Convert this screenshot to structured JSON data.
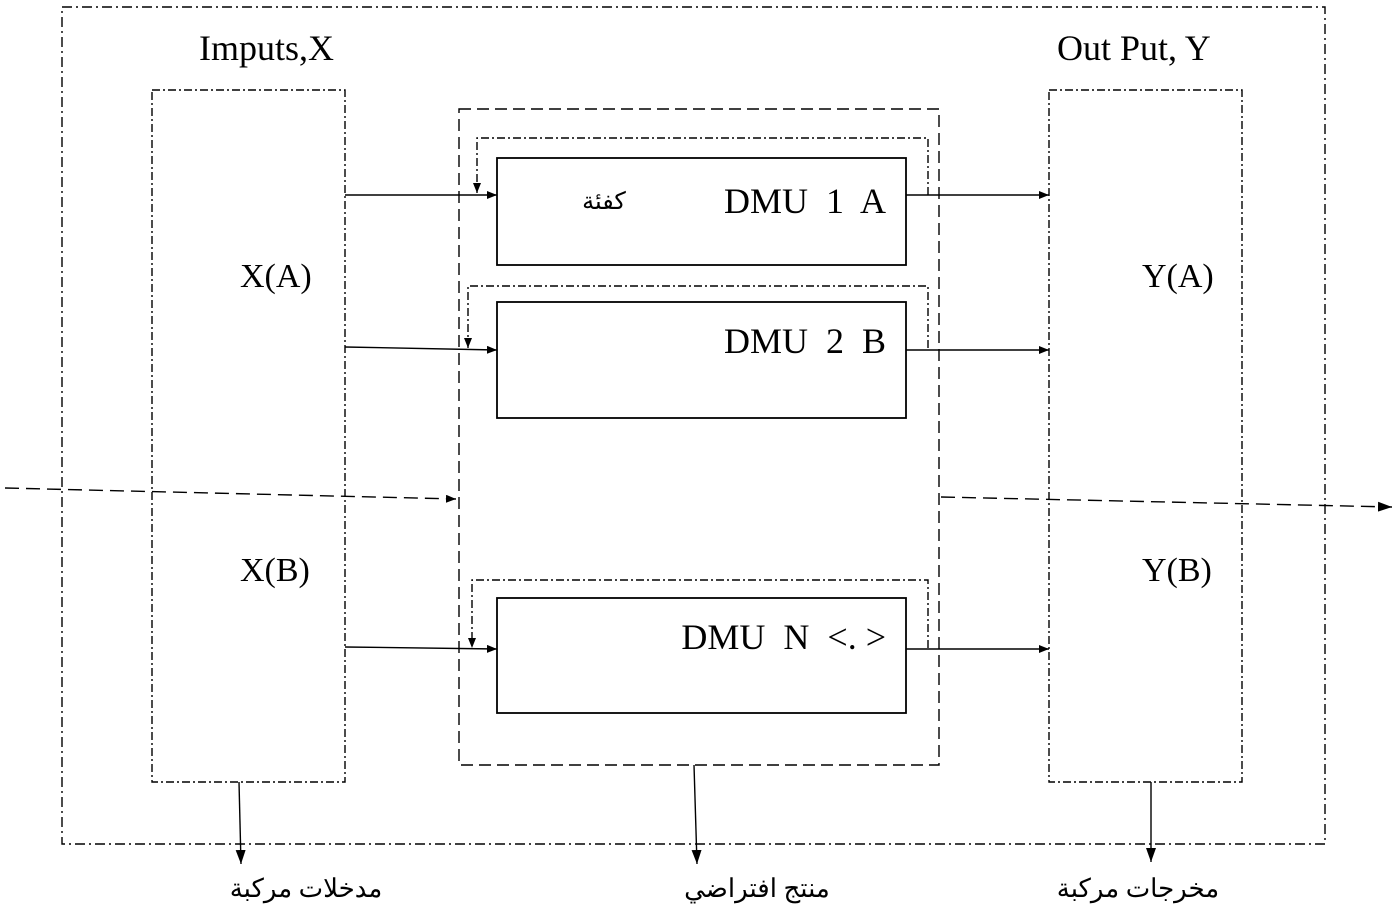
{
  "headers": {
    "inputs": "Imputs,X",
    "outputs": "Out Put, Y"
  },
  "inputs": {
    "x_a": "X(A)",
    "x_b": "X(B)"
  },
  "outputs": {
    "y_a": "Y(A)",
    "y_b": "Y(B)"
  },
  "dmus": [
    {
      "label": "DMU  1  A",
      "note": "كفئة"
    },
    {
      "label": "DMU  2  B"
    },
    {
      "label": "DMU  N  <. >"
    }
  ],
  "footer": {
    "inputs": "مدخلات مركبة",
    "virtual": "منتج افتراضي",
    "outputs": "مخرجات مركبة"
  }
}
